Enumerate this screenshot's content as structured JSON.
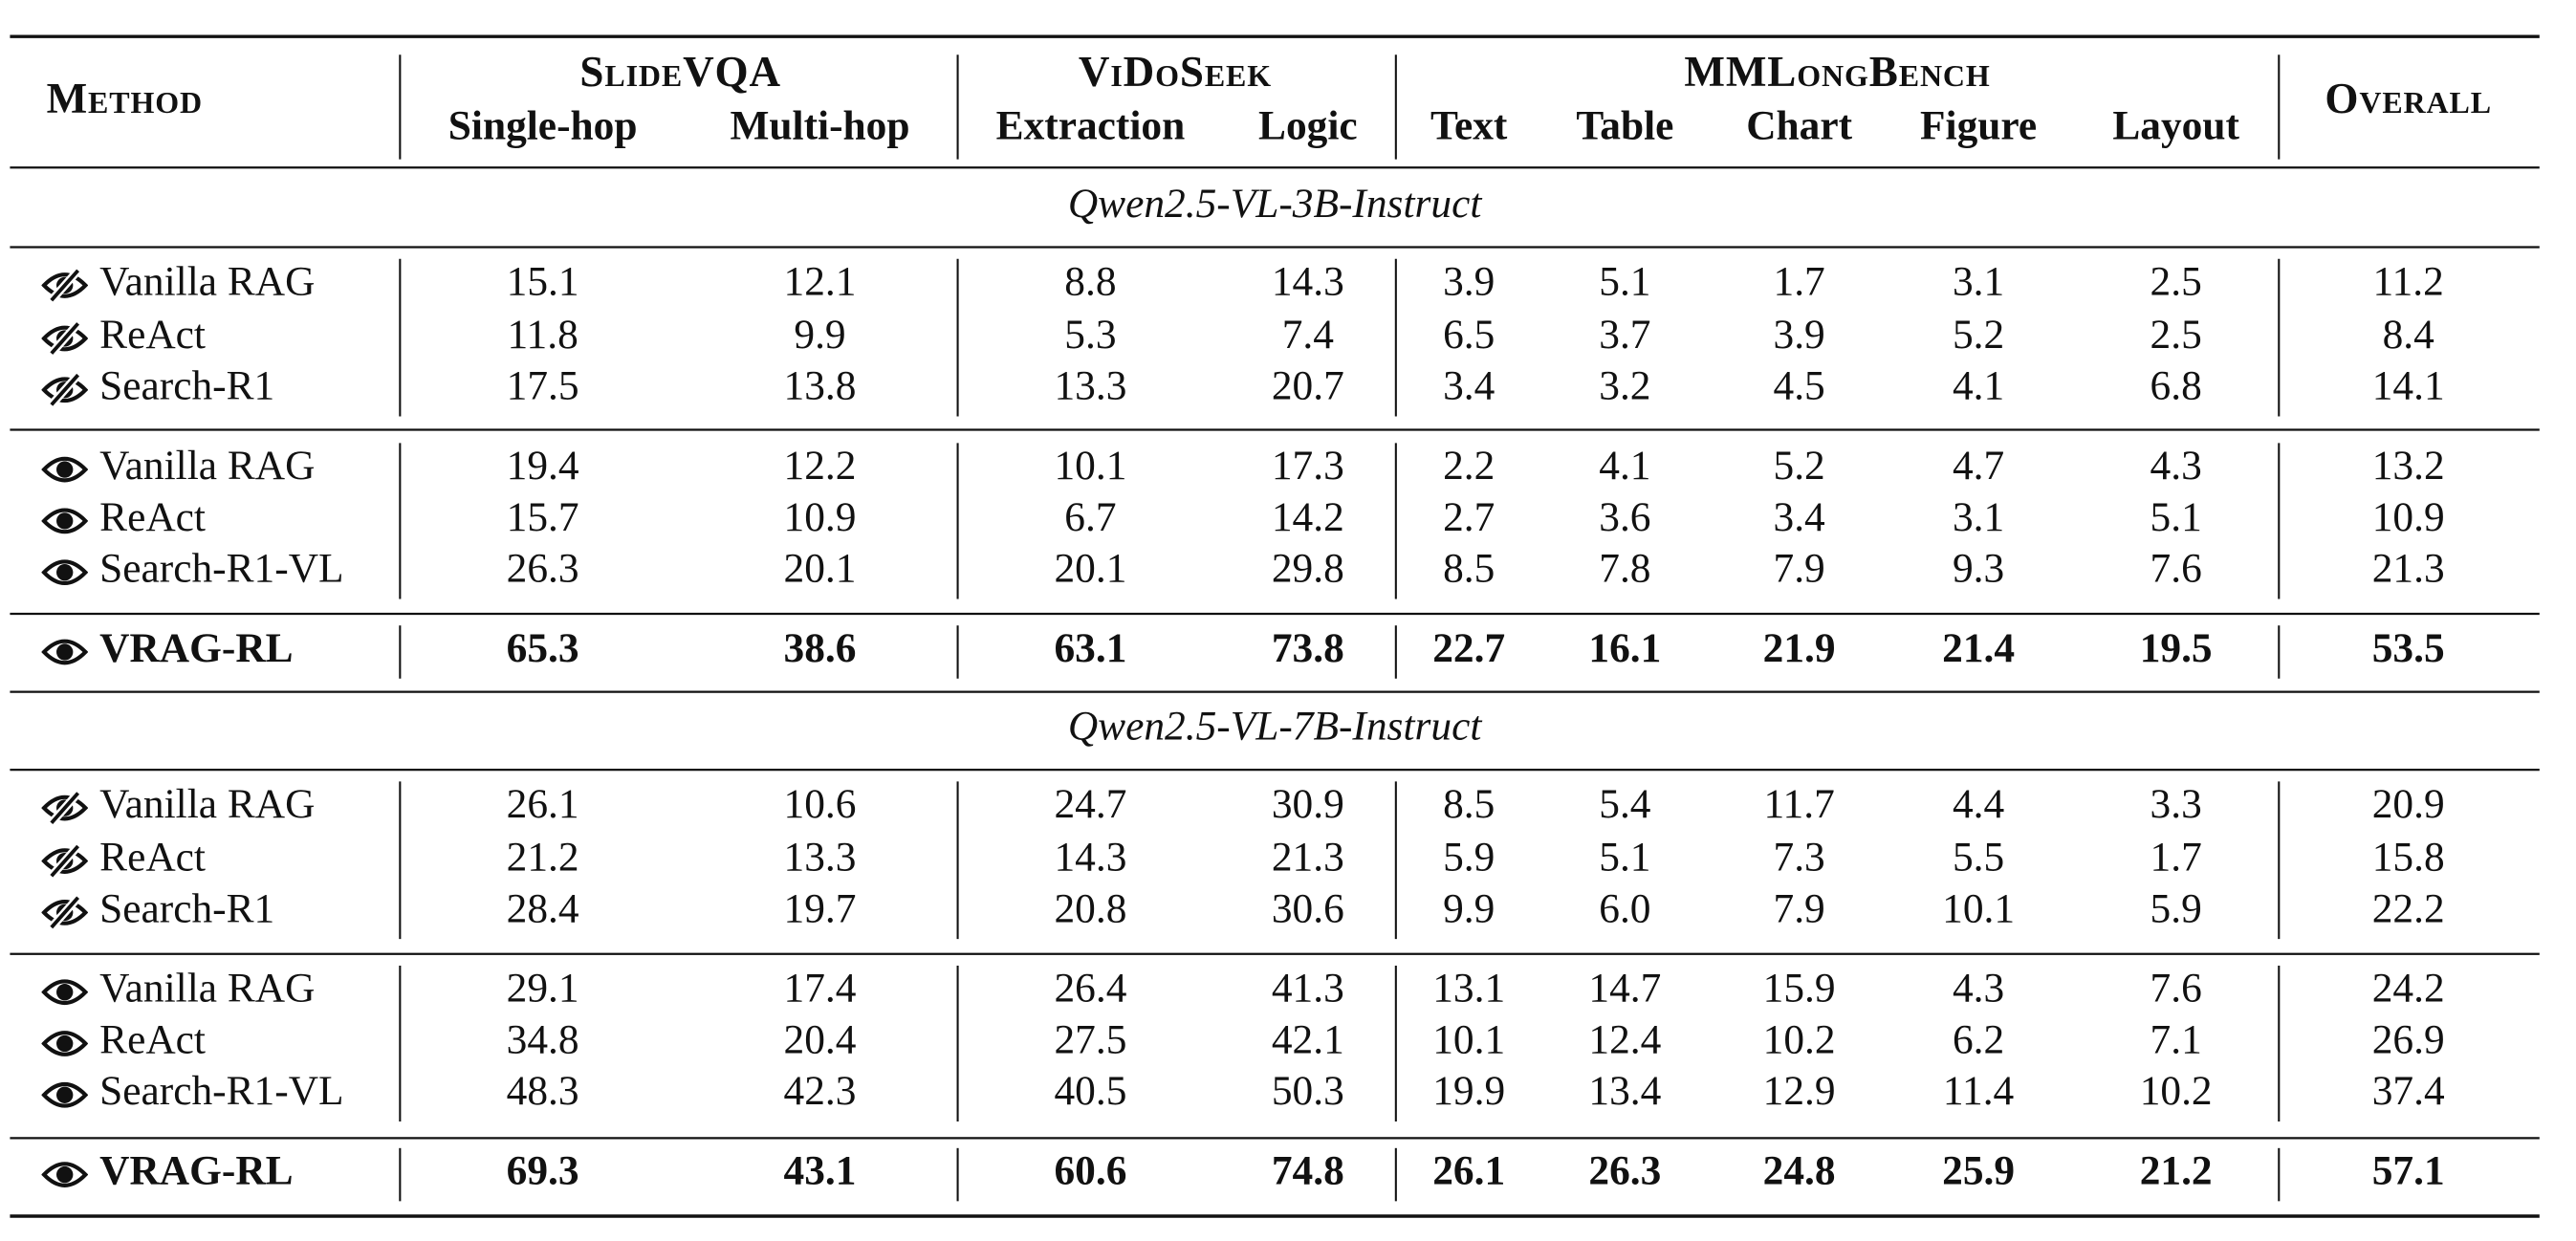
{
  "header": {
    "method": "Method",
    "groups": [
      {
        "name": "SlideVQA",
        "columns": [
          "Single-hop",
          "Multi-hop"
        ]
      },
      {
        "name": "ViDoSeek",
        "columns": [
          "Extraction",
          "Logic"
        ]
      },
      {
        "name": "MMLongBench",
        "columns": [
          "Text",
          "Table",
          "Chart",
          "Figure",
          "Layout"
        ]
      }
    ],
    "overall": "Overall"
  },
  "table": {
    "sections": [
      {
        "title": "Qwen2.5-VL-3B-Instruct",
        "blocks": [
          [
            {
              "method": "Vanilla RAG",
              "values": [
                "15.1",
                "12.1",
                "8.8",
                "14.3",
                "3.9",
                "5.1",
                "1.7",
                "3.1",
                "2.5",
                "11.2"
              ]
            },
            {
              "method": "ReAct",
              "values": [
                "11.8",
                "9.9",
                "5.3",
                "7.4",
                "6.5",
                "3.7",
                "3.9",
                "5.2",
                "2.5",
                "8.4"
              ]
            },
            {
              "method": "Search-R1",
              "values": [
                "17.5",
                "13.8",
                "13.3",
                "20.7",
                "3.4",
                "3.2",
                "4.5",
                "4.1",
                "6.8",
                "14.1"
              ]
            }
          ],
          [
            {
              "method": "Vanilla RAG",
              "values": [
                "19.4",
                "12.2",
                "10.1",
                "17.3",
                "2.2",
                "4.1",
                "5.2",
                "4.7",
                "4.3",
                "13.2"
              ]
            },
            {
              "method": "ReAct",
              "values": [
                "15.7",
                "10.9",
                "6.7",
                "14.2",
                "2.7",
                "3.6",
                "3.4",
                "3.1",
                "5.1",
                "10.9"
              ]
            },
            {
              "method": "Search-R1-VL",
              "values": [
                "26.3",
                "20.1",
                "20.1",
                "29.8",
                "8.5",
                "7.8",
                "7.9",
                "9.3",
                "7.6",
                "21.3"
              ]
            }
          ],
          [
            {
              "method": "VRAG-RL",
              "values": [
                "65.3",
                "38.6",
                "63.1",
                "73.8",
                "22.7",
                "16.1",
                "21.9",
                "21.4",
                "19.5",
                "53.5"
              ]
            }
          ]
        ]
      },
      {
        "title": "Qwen2.5-VL-7B-Instruct",
        "blocks": [
          [
            {
              "method": "Vanilla RAG",
              "values": [
                "26.1",
                "10.6",
                "24.7",
                "30.9",
                "8.5",
                "5.4",
                "11.7",
                "4.4",
                "3.3",
                "20.9"
              ]
            },
            {
              "method": "ReAct",
              "values": [
                "21.2",
                "13.3",
                "14.3",
                "21.3",
                "5.9",
                "5.1",
                "7.3",
                "5.5",
                "1.7",
                "15.8"
              ]
            },
            {
              "method": "Search-R1",
              "values": [
                "28.4",
                "19.7",
                "20.8",
                "30.6",
                "9.9",
                "6.0",
                "7.9",
                "10.1",
                "5.9",
                "22.2"
              ]
            }
          ],
          [
            {
              "method": "Vanilla RAG",
              "values": [
                "29.1",
                "17.4",
                "26.4",
                "41.3",
                "13.1",
                "14.7",
                "15.9",
                "4.3",
                "7.6",
                "24.2"
              ]
            },
            {
              "method": "ReAct",
              "values": [
                "34.8",
                "20.4",
                "27.5",
                "42.1",
                "10.1",
                "12.4",
                "10.2",
                "6.2",
                "7.1",
                "26.9"
              ]
            },
            {
              "method": "Search-R1-VL",
              "values": [
                "48.3",
                "42.3",
                "40.5",
                "50.3",
                "19.9",
                "13.4",
                "12.9",
                "11.4",
                "10.2",
                "37.4"
              ]
            }
          ],
          [
            {
              "method": "VRAG-RL",
              "values": [
                "69.3",
                "43.1",
                "60.6",
                "74.8",
                "26.1",
                "26.3",
                "24.8",
                "25.9",
                "21.2",
                "57.1"
              ]
            }
          ]
        ]
      }
    ]
  }
}
